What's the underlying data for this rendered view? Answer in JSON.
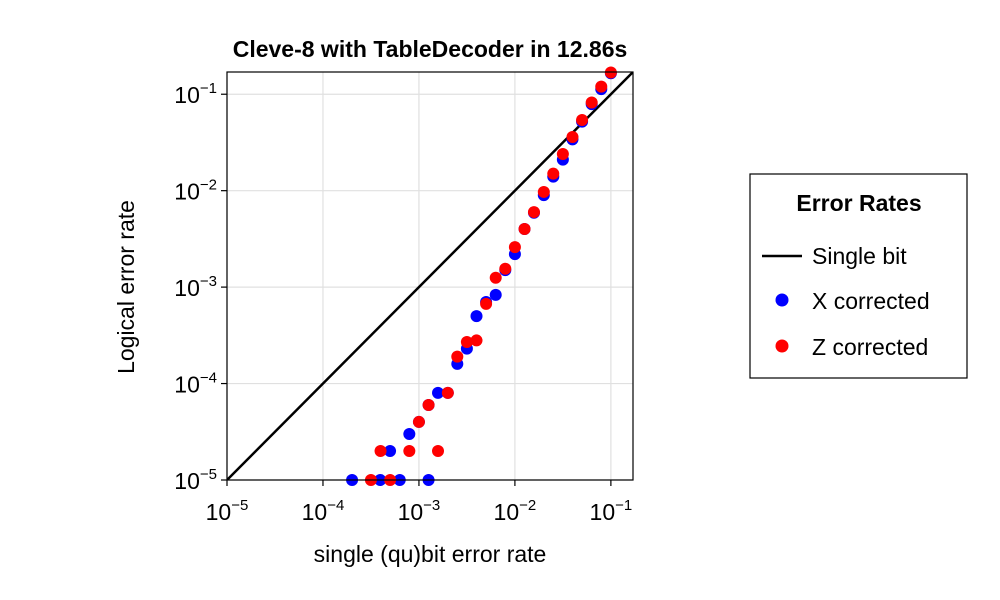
{
  "chart_data": {
    "type": "scatter",
    "title": "Cleve-8 with TableDecoder in 12.86s",
    "xlabel": "single (qu)bit error rate",
    "ylabel": "Logical error rate",
    "xscale": "log10",
    "yscale": "log10",
    "xlim": [
      1e-05,
      0.17
    ],
    "ylim": [
      1e-05,
      0.17
    ],
    "xticks": [
      {
        "base": "10",
        "exp": "−5"
      },
      {
        "base": "10",
        "exp": "−4"
      },
      {
        "base": "10",
        "exp": "−3"
      },
      {
        "base": "10",
        "exp": "−2"
      },
      {
        "base": "10",
        "exp": "−1"
      }
    ],
    "yticks": [
      {
        "base": "10",
        "exp": "−5"
      },
      {
        "base": "10",
        "exp": "−4"
      },
      {
        "base": "10",
        "exp": "−3"
      },
      {
        "base": "10",
        "exp": "−2"
      },
      {
        "base": "10",
        "exp": "−1"
      }
    ],
    "xtick_values": [
      1e-05,
      0.0001,
      0.001,
      0.01,
      0.1
    ],
    "ytick_values": [
      1e-05,
      0.0001,
      0.001,
      0.01,
      0.1
    ],
    "grid": true,
    "legend": {
      "title": "Error Rates",
      "placement": "right",
      "entries": [
        {
          "label": "Single bit",
          "kind": "line",
          "color": "#000000"
        },
        {
          "label": "X corrected",
          "kind": "marker",
          "color": "#0000ff"
        },
        {
          "label": "Z corrected",
          "kind": "marker",
          "color": "#ff0000"
        }
      ]
    },
    "series": [
      {
        "name": "Single bit",
        "kind": "line",
        "color": "#000000",
        "x": [
          1e-05,
          0.17
        ],
        "y": [
          1e-05,
          0.17
        ]
      },
      {
        "name": "X corrected",
        "kind": "scatter",
        "color": "#0000ff",
        "points": [
          [
            0.000201,
            1e-05
          ],
          [
            0.000395,
            1e-05
          ],
          [
            0.000631,
            1e-05
          ],
          [
            0.00126,
            1e-05
          ],
          [
            0.0005,
            2e-05
          ],
          [
            0.000794,
            3e-05
          ],
          [
            0.001,
            4e-05
          ],
          [
            0.00126,
            6e-05
          ],
          [
            0.00158,
            8e-05
          ],
          [
            0.002,
            8e-05
          ],
          [
            0.00251,
            0.00016
          ],
          [
            0.00316,
            0.00023
          ],
          [
            0.00398,
            0.0005
          ],
          [
            0.00501,
            0.0007
          ],
          [
            0.00631,
            0.00083
          ],
          [
            0.00794,
            0.0015
          ],
          [
            0.01,
            0.0022
          ],
          [
            0.0126,
            0.004
          ],
          [
            0.0158,
            0.0059
          ],
          [
            0.02,
            0.009
          ],
          [
            0.0251,
            0.014
          ],
          [
            0.0316,
            0.021
          ],
          [
            0.0398,
            0.034
          ],
          [
            0.0501,
            0.052
          ],
          [
            0.0631,
            0.079
          ],
          [
            0.0794,
            0.113
          ],
          [
            0.1,
            0.165
          ]
        ]
      },
      {
        "name": "Z corrected",
        "kind": "scatter",
        "color": "#ff0000",
        "points": [
          [
            0.000316,
            1e-05
          ],
          [
            0.000501,
            1e-05
          ],
          [
            0.000398,
            2e-05
          ],
          [
            0.000794,
            2e-05
          ],
          [
            0.00158,
            2e-05
          ],
          [
            0.001,
            4e-05
          ],
          [
            0.00126,
            6e-05
          ],
          [
            0.002,
            8e-05
          ],
          [
            0.00251,
            0.00019
          ],
          [
            0.00316,
            0.00027
          ],
          [
            0.00398,
            0.00028
          ],
          [
            0.00501,
            0.00067
          ],
          [
            0.00631,
            0.00125
          ],
          [
            0.00794,
            0.00155
          ],
          [
            0.01,
            0.0026
          ],
          [
            0.0126,
            0.004
          ],
          [
            0.0158,
            0.006
          ],
          [
            0.02,
            0.0097
          ],
          [
            0.0251,
            0.015
          ],
          [
            0.0316,
            0.024
          ],
          [
            0.0398,
            0.036
          ],
          [
            0.0501,
            0.054
          ],
          [
            0.0631,
            0.082
          ],
          [
            0.0794,
            0.12
          ],
          [
            0.1,
            0.168
          ]
        ]
      }
    ]
  }
}
